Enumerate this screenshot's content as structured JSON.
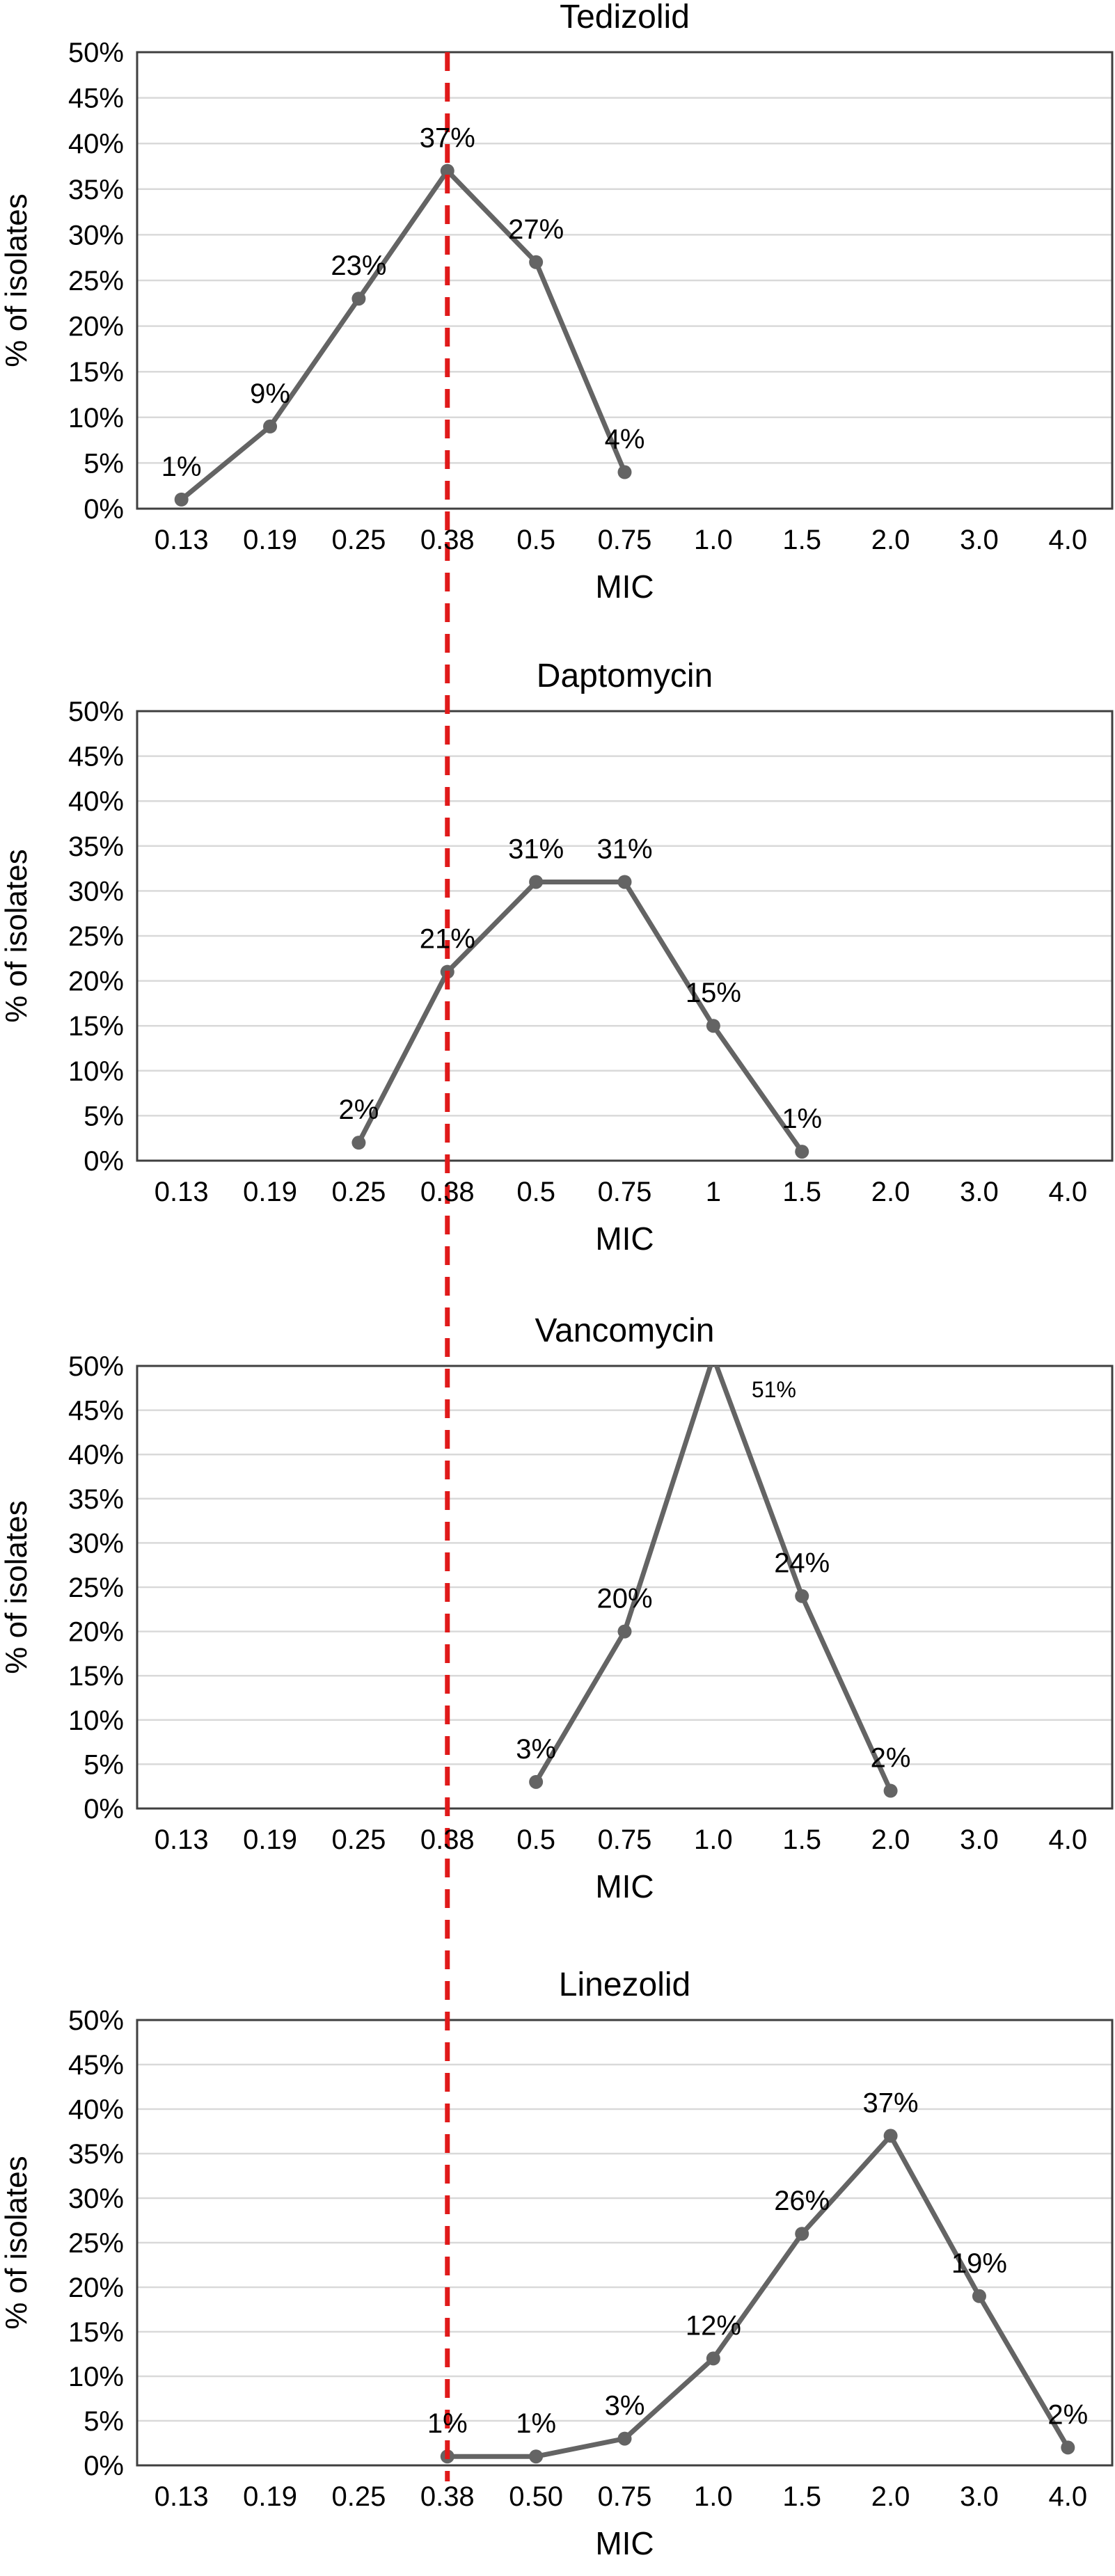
{
  "figure": {
    "background": "#ffffff",
    "series_color": "#646464",
    "grid_color": "#d9d9d9",
    "frame_color": "#3f3f3f",
    "text_color": "#000000",
    "breakpoint_line": {
      "category": "0.38",
      "color": "#e01a1a",
      "style": "dashed"
    }
  },
  "chart_data": [
    {
      "type": "line",
      "title": "Tedizolid",
      "xlabel": "MIC",
      "ylabel": "% of isolates",
      "ylim": [
        0,
        50
      ],
      "grid": true,
      "legend": false,
      "yticks": [
        "0%",
        "5%",
        "10%",
        "15%",
        "20%",
        "25%",
        "30%",
        "35%",
        "40%",
        "45%",
        "50%"
      ],
      "categories": [
        "0.13",
        "0.19",
        "0.25",
        "0.38",
        "0.5",
        "0.75",
        "1.0",
        "1.5",
        "2.0",
        "3.0",
        "4.0"
      ],
      "points": [
        {
          "category": "0.13",
          "value": 1,
          "label": "1%"
        },
        {
          "category": "0.19",
          "value": 9,
          "label": "9%"
        },
        {
          "category": "0.25",
          "value": 23,
          "label": "23%"
        },
        {
          "category": "0.38",
          "value": 37,
          "label": "37%"
        },
        {
          "category": "0.5",
          "value": 27,
          "label": "27%"
        },
        {
          "category": "0.75",
          "value": 4,
          "label": "4%"
        }
      ]
    },
    {
      "type": "line",
      "title": "Daptomycin",
      "xlabel": "MIC",
      "ylabel": "% of isolates",
      "ylim": [
        0,
        50
      ],
      "grid": true,
      "legend": false,
      "yticks": [
        "0%",
        "5%",
        "10%",
        "15%",
        "20%",
        "25%",
        "30%",
        "35%",
        "40%",
        "45%",
        "50%"
      ],
      "categories": [
        "0.13",
        "0.19",
        "0.25",
        "0.38",
        "0.5",
        "0.75",
        "1",
        "1.5",
        "2.0",
        "3.0",
        "4.0"
      ],
      "points": [
        {
          "category": "0.25",
          "value": 2,
          "label": "2%"
        },
        {
          "category": "0.38",
          "value": 21,
          "label": "21%"
        },
        {
          "category": "0.5",
          "value": 31,
          "label": "31%"
        },
        {
          "category": "0.75",
          "value": 31,
          "label": "31%"
        },
        {
          "category": "1",
          "value": 15,
          "label": "15%"
        },
        {
          "category": "1.5",
          "value": 1,
          "label": "1%"
        }
      ]
    },
    {
      "type": "line",
      "title": "Vancomycin",
      "xlabel": "MIC",
      "ylabel": "% of isolates",
      "ylim": [
        0,
        50
      ],
      "grid": true,
      "legend": false,
      "yticks": [
        "0%",
        "5%",
        "10%",
        "15%",
        "20%",
        "25%",
        "30%",
        "35%",
        "40%",
        "45%",
        "50%"
      ],
      "categories": [
        "0.13",
        "0.19",
        "0.25",
        "0.38",
        "0.5",
        "0.75",
        "1.0",
        "1.5",
        "2.0",
        "3.0",
        "4.0"
      ],
      "points": [
        {
          "category": "0.5",
          "value": 3,
          "label": "3%"
        },
        {
          "category": "0.75",
          "value": 20,
          "label": "20%"
        },
        {
          "category": "1.0",
          "value": 51,
          "label": "51%"
        },
        {
          "category": "1.5",
          "value": 24,
          "label": "24%"
        },
        {
          "category": "2.0",
          "value": 2,
          "label": "2%"
        }
      ]
    },
    {
      "type": "line",
      "title": "Linezolid",
      "xlabel": "MIC",
      "ylabel": "% of isolates",
      "ylim": [
        0,
        50
      ],
      "grid": true,
      "legend": false,
      "yticks": [
        "0%",
        "5%",
        "10%",
        "15%",
        "20%",
        "25%",
        "30%",
        "35%",
        "40%",
        "45%",
        "50%"
      ],
      "categories": [
        "0.13",
        "0.19",
        "0.25",
        "0.38",
        "0.50",
        "0.75",
        "1.0",
        "1.5",
        "2.0",
        "3.0",
        "4.0"
      ],
      "points": [
        {
          "category": "0.38",
          "value": 1,
          "label": "1%"
        },
        {
          "category": "0.50",
          "value": 1,
          "label": "1%"
        },
        {
          "category": "0.75",
          "value": 3,
          "label": "3%"
        },
        {
          "category": "1.0",
          "value": 12,
          "label": "12%"
        },
        {
          "category": "1.5",
          "value": 26,
          "label": "26%"
        },
        {
          "category": "2.0",
          "value": 37,
          "label": "37%"
        },
        {
          "category": "3.0",
          "value": 19,
          "label": "19%"
        },
        {
          "category": "4.0",
          "value": 2,
          "label": "2%"
        }
      ]
    }
  ]
}
